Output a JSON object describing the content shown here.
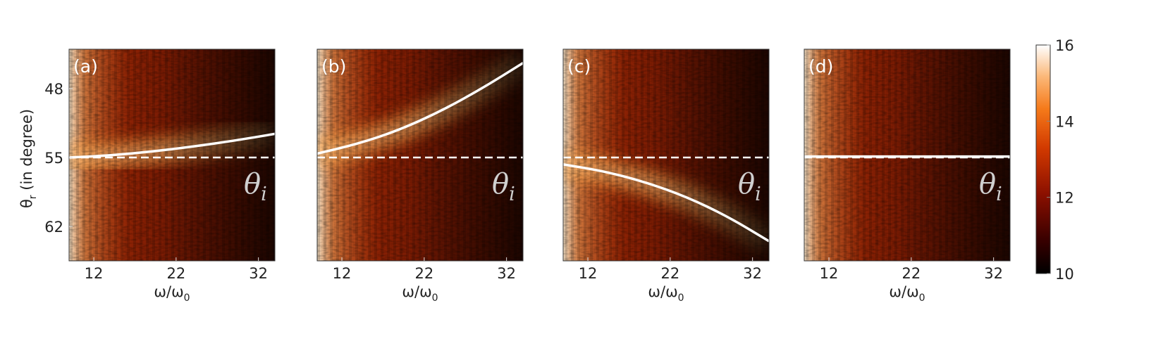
{
  "chart_data": [
    {
      "type": "heatmap",
      "panel_label": "(a)",
      "xlabel": "ω/ω",
      "xlabel_sub": "0",
      "ylabel": "θ",
      "ylabel_sub": "r",
      "ylabel_rest": " (in degree)",
      "xlim": [
        9,
        34
      ],
      "ylim": [
        65.5,
        44
      ],
      "xticks": [
        12,
        22,
        32
      ],
      "yticks": [
        48,
        55,
        62
      ],
      "incident_angle_deg": 55,
      "annotation": "θ",
      "annotation_sub": "i",
      "curve": {
        "x": [
          9,
          14,
          19,
          24,
          29,
          34
        ],
        "y": [
          55.0,
          54.8,
          54.4,
          53.9,
          53.3,
          52.6
        ]
      }
    },
    {
      "type": "heatmap",
      "panel_label": "(b)",
      "xlabel": "ω/ω",
      "xlabel_sub": "0",
      "xlim": [
        9,
        34
      ],
      "ylim": [
        65.5,
        44
      ],
      "xticks": [
        12,
        22,
        32
      ],
      "yticks": [],
      "incident_angle_deg": 55,
      "annotation": "θ",
      "annotation_sub": "i",
      "curve": {
        "x": [
          9,
          14,
          19,
          24,
          29,
          34
        ],
        "y": [
          54.6,
          53.6,
          52.2,
          50.3,
          48.0,
          45.4
        ]
      }
    },
    {
      "type": "heatmap",
      "panel_label": "(c)",
      "xlabel": "ω/ω",
      "xlabel_sub": "0",
      "xlim": [
        9,
        34
      ],
      "ylim": [
        65.5,
        44
      ],
      "xticks": [
        12,
        22,
        32
      ],
      "yticks": [],
      "incident_angle_deg": 55,
      "annotation": "θ",
      "annotation_sub": "i",
      "curve": {
        "x": [
          9,
          14,
          19,
          24,
          29,
          34
        ],
        "y": [
          55.7,
          56.4,
          57.5,
          59.0,
          61.0,
          63.5
        ]
      }
    },
    {
      "type": "heatmap",
      "panel_label": "(d)",
      "xlabel": "ω/ω",
      "xlabel_sub": "0",
      "xlim": [
        9,
        34
      ],
      "ylim": [
        65.5,
        44
      ],
      "xticks": [
        12,
        22,
        32
      ],
      "yticks": [],
      "incident_angle_deg": 55,
      "annotation": "θ",
      "annotation_sub": "i",
      "curve": {
        "x": [
          9,
          34
        ],
        "y": [
          54.9,
          54.9
        ]
      }
    }
  ],
  "colorbar": {
    "min": 10,
    "max": 16,
    "ticks": [
      10,
      12,
      14,
      16
    ],
    "colors": [
      "#000000",
      "#3a0000",
      "#8c1000",
      "#d23a00",
      "#f57a1a",
      "#fbb777",
      "#ffffff"
    ]
  }
}
